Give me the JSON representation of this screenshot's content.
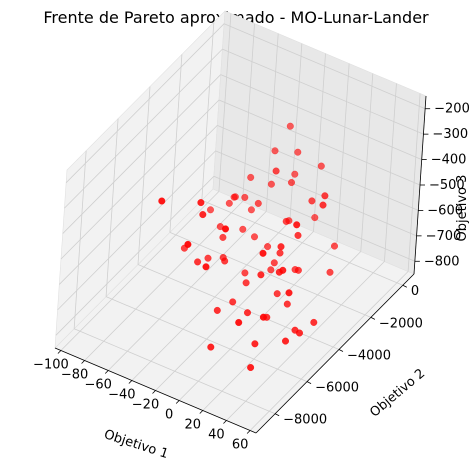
{
  "chart_data": {
    "type": "scatter",
    "projection": "3d",
    "title": "Frente de Pareto aproximado - MO-Lunar-Lander",
    "xlabel": "Objetivo 1",
    "ylabel": "Objetivo 2",
    "zlabel": "Objetivo 3",
    "xlim": [
      -105,
      65
    ],
    "ylim": [
      -9200,
      700
    ],
    "zlim": [
      -850,
      -150
    ],
    "xticks": [
      -100,
      -80,
      -60,
      -40,
      -20,
      0,
      20,
      40,
      60
    ],
    "xtick_labels": [
      "−100",
      "−80",
      "−60",
      "−40",
      "−20",
      "0",
      "20",
      "40",
      "60"
    ],
    "yticks": [
      -8000,
      -6000,
      -4000,
      -2000,
      0
    ],
    "ytick_labels": [
      "−8000",
      "−6000",
      "−4000",
      "−2000",
      "0"
    ],
    "zticks": [
      -800,
      -700,
      -600,
      -500,
      -400,
      -300,
      -200
    ],
    "ztick_labels": [
      "−800",
      "−700",
      "−600",
      "−500",
      "−400",
      "−300",
      "−200"
    ],
    "grid": true,
    "legend": "none",
    "marker_color": "#ff0000",
    "series": [
      {
        "points": [
          [
            -90,
            -600,
            -820
          ],
          [
            -80,
            200,
            -800
          ],
          [
            -60,
            -300,
            -780
          ],
          [
            -45,
            -1200,
            -800
          ],
          [
            -35,
            -2500,
            -840
          ],
          [
            -25,
            -4000,
            -840
          ],
          [
            -10,
            -6500,
            -830
          ],
          [
            0,
            -2000,
            -790
          ],
          [
            10,
            -4500,
            -800
          ],
          [
            20,
            -6000,
            -790
          ],
          [
            30,
            -7000,
            -800
          ],
          [
            40,
            -5000,
            -760
          ],
          [
            -70,
            -1000,
            -730
          ],
          [
            -55,
            -2500,
            -740
          ],
          [
            -40,
            -3500,
            -740
          ],
          [
            -20,
            -1000,
            -700
          ],
          [
            -5,
            -500,
            -690
          ],
          [
            15,
            -3000,
            -700
          ],
          [
            25,
            -1500,
            -680
          ],
          [
            35,
            -2500,
            -700
          ],
          [
            -60,
            -500,
            -640
          ],
          [
            -40,
            -1500,
            -640
          ],
          [
            -30,
            0,
            -600
          ],
          [
            -10,
            -2000,
            -620
          ],
          [
            5,
            -3500,
            -620
          ],
          [
            -50,
            200,
            -560
          ],
          [
            -30,
            100,
            -520
          ],
          [
            -20,
            -1000,
            -550
          ],
          [
            -5,
            -300,
            -500
          ],
          [
            10,
            -2000,
            -500
          ],
          [
            30,
            -5500,
            -520
          ],
          [
            -40,
            300,
            -450
          ],
          [
            -15,
            -2500,
            -400
          ],
          [
            -60,
            -800,
            -700
          ],
          [
            -45,
            -300,
            -650
          ],
          [
            -75,
            -300,
            -760
          ],
          [
            -70,
            -1500,
            -790
          ],
          [
            -55,
            -1200,
            -790
          ],
          [
            -30,
            -1500,
            -790
          ],
          [
            -15,
            -2200,
            -780
          ],
          [
            5,
            -3500,
            -780
          ],
          [
            20,
            -4000,
            -760
          ],
          [
            45,
            -6000,
            -730
          ],
          [
            50,
            -5500,
            -720
          ],
          [
            55,
            -5000,
            -700
          ],
          [
            -50,
            -2800,
            -790
          ],
          [
            -20,
            -3600,
            -780
          ],
          [
            0,
            -5000,
            -770
          ],
          [
            -25,
            -5000,
            -810
          ],
          [
            40,
            -3600,
            -320
          ],
          [
            -20,
            -7000,
            -250
          ],
          [
            50,
            -4500,
            -280
          ],
          [
            60,
            -7000,
            -180
          ],
          [
            40,
            -7500,
            -300
          ],
          [
            30,
            -5500,
            -420
          ],
          [
            45,
            -6500,
            -420
          ],
          [
            55,
            -6800,
            -470
          ],
          [
            -30,
            -6000,
            -380
          ],
          [
            -40,
            -8000,
            -220
          ],
          [
            -10,
            -8500,
            -300
          ],
          [
            20,
            -8500,
            -180
          ],
          [
            0,
            -8000,
            -400
          ],
          [
            50,
            -8000,
            -500
          ],
          [
            -20,
            -2000,
            -830
          ],
          [
            -60,
            -3000,
            -800
          ],
          [
            -80,
            -3000,
            -800
          ],
          [
            15,
            -5500,
            -560
          ],
          [
            30,
            -8000,
            -560
          ],
          [
            -50,
            -4500,
            -700
          ],
          [
            25,
            -4000,
            -480
          ]
        ]
      }
    ]
  }
}
